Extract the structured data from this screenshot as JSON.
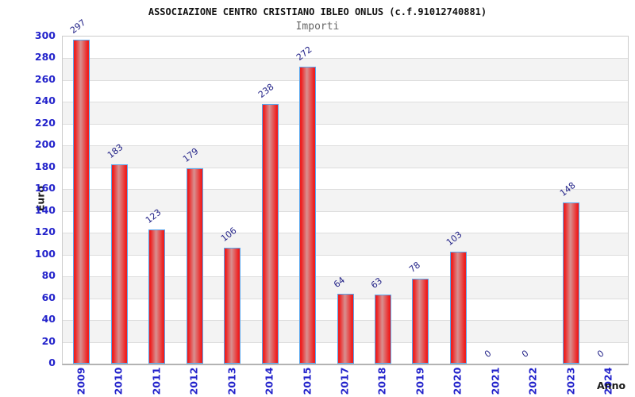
{
  "chart_data": {
    "type": "bar",
    "title": "ASSOCIAZIONE CENTRO CRISTIANO IBLEO ONLUS (c.f.91012740881)",
    "subtitle": "Importi",
    "xlabel": "Anno",
    "ylabel": "Euro",
    "categories": [
      "2009",
      "2010",
      "2011",
      "2012",
      "2013",
      "2014",
      "2015",
      "2017",
      "2018",
      "2019",
      "2020",
      "2021",
      "2022",
      "2023",
      "2024"
    ],
    "values": [
      297,
      183,
      123,
      179,
      106,
      238,
      272,
      64,
      63,
      78,
      103,
      0,
      0,
      148,
      0
    ],
    "ylim": [
      0,
      300
    ],
    "ytick_step": 20,
    "grid": true,
    "grid_style": "alternating horizontal bands",
    "legend": false,
    "value_labels_rotated": true
  },
  "colors": {
    "bar_red": "#ee1f1f",
    "bar_center_light": "#d89090",
    "bar_border_blue": "#59a7ee",
    "axis_tick_label_blue": "#2323cb",
    "value_label_navy": "#232388",
    "axis_title_dark": "#1a1a1a",
    "subtitle_gray": "#666666",
    "band_gray": "#f3f3f3",
    "gridline_gray": "#dddddd"
  }
}
